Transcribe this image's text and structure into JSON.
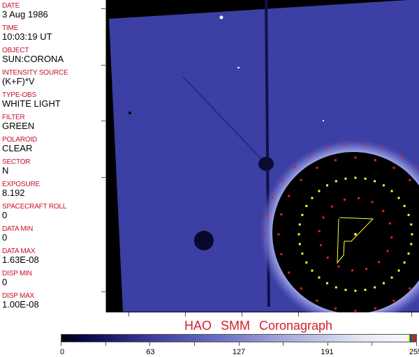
{
  "metadata": [
    {
      "label": "DATE",
      "value": "3 Aug 1986"
    },
    {
      "label": "TIME",
      "value": "10:03:19 UT"
    },
    {
      "label": "OBJECT",
      "value": "SUN:CORONA"
    },
    {
      "label": "INTENSITY SOURCE",
      "value": "(K+F)*V"
    },
    {
      "label": "TYPE-OBS",
      "value": "WHITE LIGHT"
    },
    {
      "label": "FILTER",
      "value": "GREEN"
    },
    {
      "label": "POLAROID",
      "value": "CLEAR"
    },
    {
      "label": "SECTOR",
      "value": "N"
    },
    {
      "label": "EXPOSURE",
      "value": "8.192"
    },
    {
      "label": "SPACECRAFT ROLL",
      "value": "0"
    },
    {
      "label": "DATA MIN",
      "value": "0"
    },
    {
      "label": "DATA MAX",
      "value": "1.63E-08"
    },
    {
      "label": "DISP MIN",
      "value": "0"
    },
    {
      "label": "DISP MAX",
      "value": "1.00E-08"
    }
  ],
  "title": "HAO  SMM Coronagraph",
  "colorbar": {
    "min": 0,
    "max": 255,
    "ticks": [
      "0",
      "63",
      "127",
      "191",
      "255"
    ],
    "colormap": "black-blue-white"
  },
  "colors": {
    "label": "#c8102e",
    "title": "#d0202a",
    "image_blue": "#3a3ca0",
    "marker_red": "#e02020",
    "marker_yellow": "#ffff30"
  }
}
